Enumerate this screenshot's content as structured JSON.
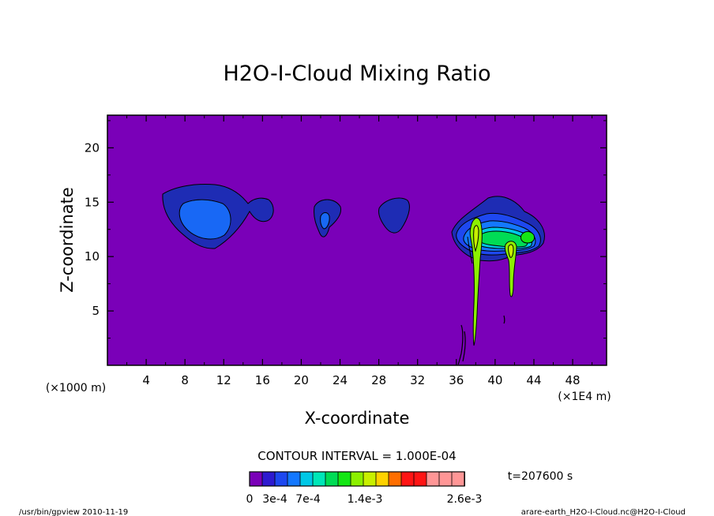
{
  "chart_data": {
    "type": "heatmap",
    "title": "H2O-I-Cloud Mixing Ratio",
    "xlabel": "X-coordinate",
    "ylabel": "Z-coordinate",
    "x_unit_left": "(×1000 m)",
    "x_unit_right": "(×1E4 m)",
    "xlim": [
      0,
      51.5
    ],
    "ylim": [
      0,
      23
    ],
    "xticks": [
      {
        "value": 4,
        "label": "4"
      },
      {
        "value": 8,
        "label": "8"
      },
      {
        "value": 12,
        "label": "12"
      },
      {
        "value": 16,
        "label": "16"
      },
      {
        "value": 20,
        "label": "20"
      },
      {
        "value": 24,
        "label": "24"
      },
      {
        "value": 28,
        "label": "28"
      },
      {
        "value": 32,
        "label": "32"
      },
      {
        "value": 36,
        "label": "36"
      },
      {
        "value": 40,
        "label": "40"
      },
      {
        "value": 44,
        "label": "44"
      },
      {
        "value": 48,
        "label": "48"
      }
    ],
    "yticks": [
      {
        "value": 5,
        "label": "5"
      },
      {
        "value": 10,
        "label": "10"
      },
      {
        "value": 15,
        "label": "15"
      },
      {
        "value": 20,
        "label": "20"
      }
    ],
    "background_color": "#7a00b8",
    "contour_interval": "CONTOUR INTERVAL = 1.000E-04",
    "time_label": "t=207600 s",
    "colorbar": {
      "colors": [
        "#7a00b8",
        "#2e1ad0",
        "#1e48f0",
        "#1478ff",
        "#00c8e6",
        "#00e6b8",
        "#00dc55",
        "#14e614",
        "#8cf000",
        "#c8f000",
        "#ffd200",
        "#ff6e00",
        "#ff1414",
        "#ff1414",
        "#ff9696",
        "#ff9696",
        "#ff9696"
      ],
      "labels": [
        "0",
        "3e-4",
        "7e-4",
        "1.4e-3",
        "2.6e-3"
      ]
    },
    "features": [
      {
        "name": "anvil-cloud-left",
        "x_center": 10,
        "z_center": 14
      },
      {
        "name": "small-cloud-22",
        "x_center": 22.5,
        "z_center": 13.5
      },
      {
        "name": "small-cloud-29",
        "x_center": 29,
        "z_center": 13.8
      },
      {
        "name": "convective-cloud-right",
        "x_center": 41,
        "z_center": 12
      }
    ],
    "grid": false
  },
  "footer": {
    "left": "/usr/bin/gpview  2010-11-19",
    "right": "arare-earth_H2O-I-Cloud.nc@H2O-I-Cloud"
  }
}
